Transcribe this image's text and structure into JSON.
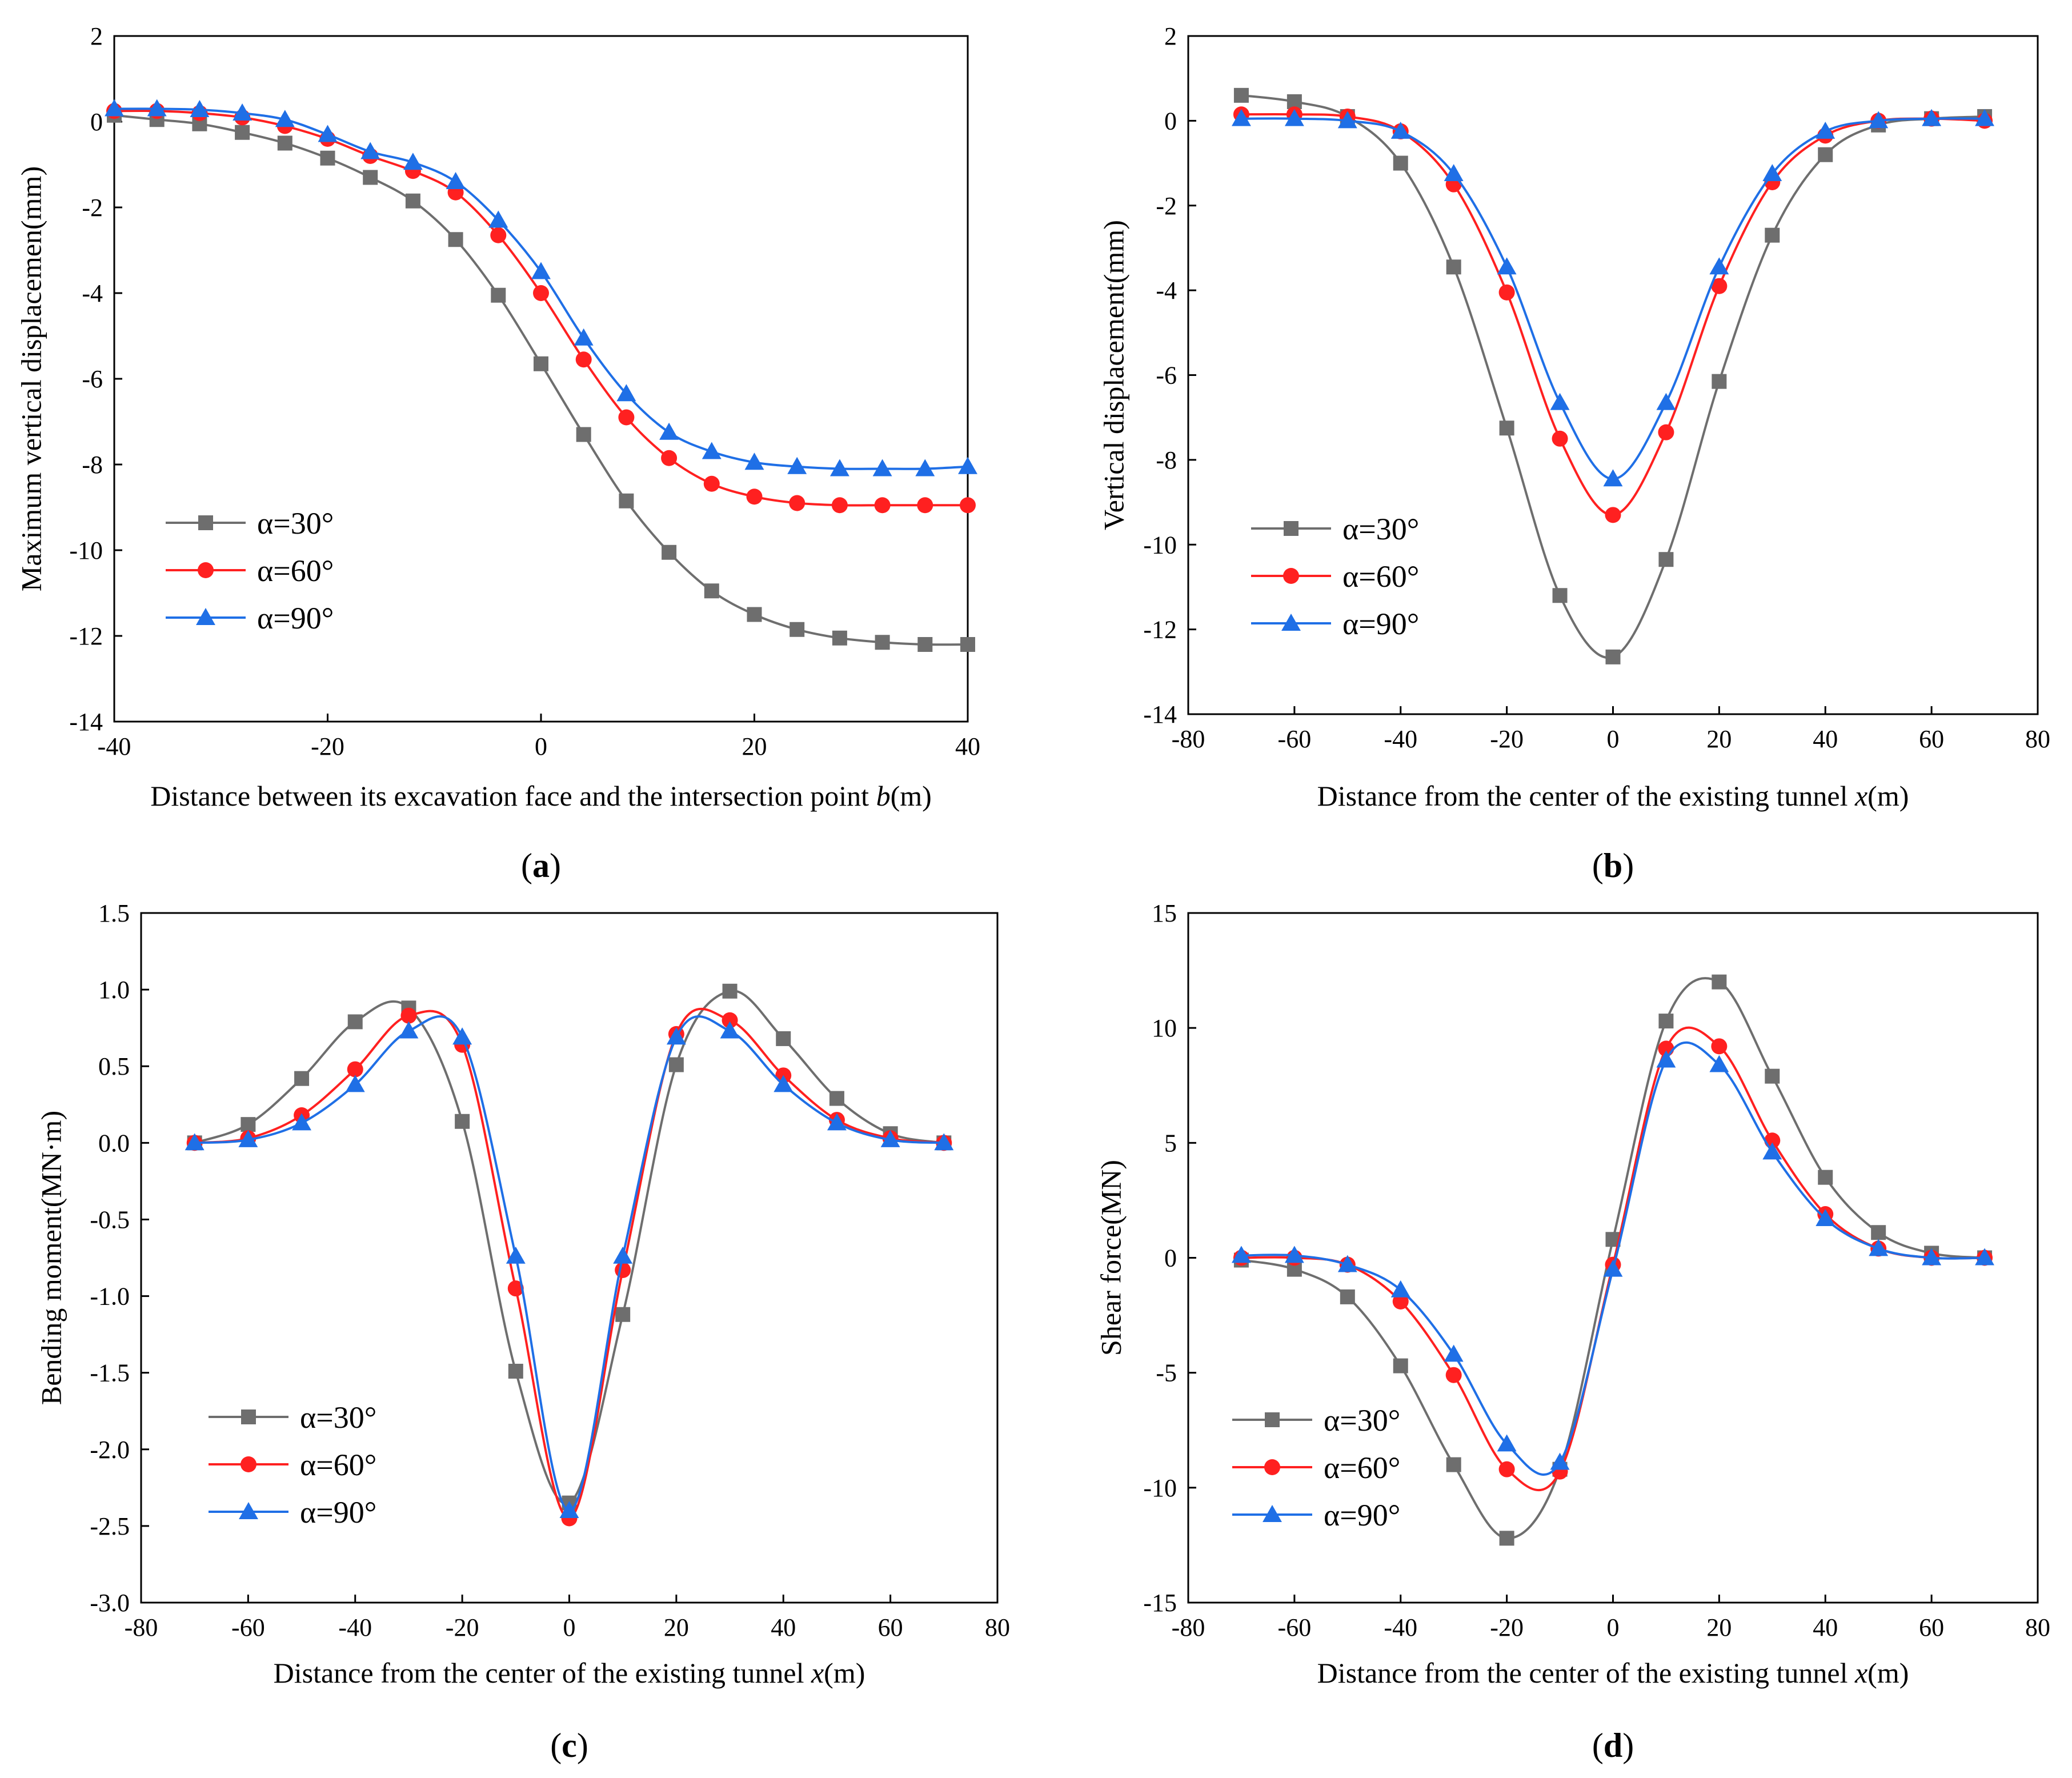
{
  "colors": {
    "s30": "#6e6e6e",
    "s60": "#ff2020",
    "s90": "#1f6fe6"
  },
  "chart_data": [
    {
      "id": "a",
      "type": "line",
      "panel_label": "(a)",
      "xlabel": "Distance between its excavation face and the intersection point b(m)",
      "xlabel_parts": {
        "pre": "Distance between its excavation face and the intersection point ",
        "var": "b",
        "post": "(m)"
      },
      "ylabel": "Maximum vertical displacemen(mm)",
      "xlim": [
        -40,
        40
      ],
      "ylim": [
        -14,
        2
      ],
      "xticks": [
        -40,
        -20,
        0,
        20,
        40
      ],
      "yticks": [
        -14,
        -12,
        -10,
        -8,
        -6,
        -4,
        -2,
        0,
        2
      ],
      "x": [
        -40,
        -36,
        -32,
        -28,
        -24,
        -20,
        -16,
        -12,
        -8,
        -4,
        0,
        4,
        8,
        12,
        16,
        20,
        24,
        28,
        32,
        36,
        40
      ],
      "series": [
        {
          "name": "α=30°",
          "marker": "square",
          "values": [
            0.15,
            0.05,
            -0.05,
            -0.25,
            -0.5,
            -0.85,
            -1.3,
            -1.85,
            -2.75,
            -4.05,
            -5.65,
            -7.3,
            -8.85,
            -10.05,
            -10.95,
            -11.5,
            -11.85,
            -12.05,
            -12.15,
            -12.2,
            -12.2
          ]
        },
        {
          "name": "α=60°",
          "marker": "circle",
          "values": [
            0.25,
            0.25,
            0.2,
            0.1,
            -0.1,
            -0.4,
            -0.8,
            -1.15,
            -1.65,
            -2.65,
            -4.0,
            -5.55,
            -6.9,
            -7.85,
            -8.45,
            -8.75,
            -8.9,
            -8.95,
            -8.95,
            -8.95,
            -8.95
          ]
        },
        {
          "name": "α=90°",
          "marker": "triangle",
          "values": [
            0.3,
            0.3,
            0.28,
            0.2,
            0.05,
            -0.3,
            -0.7,
            -0.95,
            -1.4,
            -2.3,
            -3.5,
            -5.05,
            -6.35,
            -7.25,
            -7.7,
            -7.95,
            -8.05,
            -8.1,
            -8.1,
            -8.1,
            -8.05
          ]
        }
      ]
    },
    {
      "id": "b",
      "type": "line",
      "panel_label": "(b)",
      "xlabel": "Distance from the center of the existing tunnel x(m)",
      "xlabel_parts": {
        "pre": "Distance from the center of the existing tunnel ",
        "var": "x",
        "post": "(m)"
      },
      "ylabel": "Vertical displacement(mm)",
      "xlim": [
        -80,
        80
      ],
      "ylim": [
        -14,
        2
      ],
      "xticks": [
        -80,
        -60,
        -40,
        -20,
        0,
        20,
        40,
        60,
        80
      ],
      "yticks": [
        -14,
        -12,
        -10,
        -8,
        -6,
        -4,
        -2,
        0,
        2
      ],
      "x": [
        -70,
        -60,
        -50,
        -40,
        -30,
        -20,
        -10,
        0,
        10,
        20,
        30,
        40,
        50,
        60,
        70
      ],
      "series": [
        {
          "name": "α=30°",
          "marker": "square",
          "values": [
            0.6,
            0.45,
            0.1,
            -1.0,
            -3.45,
            -7.25,
            -11.2,
            -12.65,
            -10.35,
            -6.15,
            -2.7,
            -0.8,
            -0.1,
            0.05,
            0.1
          ]
        },
        {
          "name": "α=60°",
          "marker": "circle",
          "values": [
            0.15,
            0.15,
            0.1,
            -0.25,
            -1.5,
            -4.05,
            -7.5,
            -9.3,
            -7.35,
            -3.9,
            -1.45,
            -0.35,
            0.0,
            0.05,
            0.0
          ]
        },
        {
          "name": "α=90°",
          "marker": "triangle",
          "values": [
            0.05,
            0.05,
            0.0,
            -0.25,
            -1.25,
            -3.45,
            -6.65,
            -8.45,
            -6.65,
            -3.45,
            -1.25,
            -0.25,
            0.0,
            0.05,
            0.05
          ]
        }
      ]
    },
    {
      "id": "c",
      "type": "line",
      "panel_label": "(c)",
      "xlabel": "Distance from the center of the existing tunnel x(m)",
      "xlabel_parts": {
        "pre": "Distance from the center of the existing tunnel  ",
        "var": "x",
        "post": "(m)"
      },
      "ylabel": "Bending moment(MN·m)",
      "xlim": [
        -80,
        80
      ],
      "ylim": [
        -3.0,
        1.5
      ],
      "xticks": [
        -80,
        -60,
        -40,
        -20,
        0,
        20,
        40,
        60,
        80
      ],
      "yticks": [
        -3.0,
        -2.5,
        -2.0,
        -1.5,
        -1.0,
        -0.5,
        0.0,
        0.5,
        1.0,
        1.5
      ],
      "x": [
        -70,
        -60,
        -50,
        -40,
        -30,
        -20,
        -10,
        0,
        10,
        20,
        30,
        40,
        50,
        60,
        70
      ],
      "series": [
        {
          "name": "α=30°",
          "marker": "square",
          "values": [
            0.0,
            0.12,
            0.42,
            0.79,
            0.88,
            0.14,
            -1.49,
            -2.35,
            -1.12,
            0.51,
            0.99,
            0.68,
            0.29,
            0.06,
            0.0
          ]
        },
        {
          "name": "α=60°",
          "marker": "circle",
          "values": [
            0.0,
            0.03,
            0.18,
            0.48,
            0.83,
            0.64,
            -0.95,
            -2.45,
            -0.83,
            0.71,
            0.8,
            0.44,
            0.15,
            0.03,
            0.0
          ]
        },
        {
          "name": "α=90°",
          "marker": "triangle",
          "values": [
            0.0,
            0.02,
            0.13,
            0.38,
            0.73,
            0.69,
            -0.74,
            -2.4,
            -0.74,
            0.69,
            0.73,
            0.38,
            0.13,
            0.02,
            0.0
          ]
        }
      ]
    },
    {
      "id": "d",
      "type": "line",
      "panel_label": "(d)",
      "xlabel": "Distance from the center of the existing tunnel x(m)",
      "xlabel_parts": {
        "pre": "Distance from the center of the existing tunnel ",
        "var": "x",
        "post": "(m)"
      },
      "ylabel": "Shear force(MN)",
      "xlim": [
        -80,
        80
      ],
      "ylim": [
        -15,
        15
      ],
      "xticks": [
        -80,
        -60,
        -40,
        -20,
        0,
        20,
        40,
        60,
        80
      ],
      "yticks": [
        -15,
        -10,
        -5,
        0,
        5,
        10,
        15
      ],
      "x": [
        -70,
        -60,
        -50,
        -40,
        -30,
        -20,
        -10,
        0,
        10,
        20,
        30,
        40,
        50,
        60,
        70
      ],
      "series": [
        {
          "name": "α=30°",
          "marker": "square",
          "values": [
            -0.1,
            -0.5,
            -1.7,
            -4.7,
            -9.0,
            -12.2,
            -9.2,
            0.8,
            10.3,
            12.0,
            7.9,
            3.5,
            1.1,
            0.2,
            0.0
          ]
        },
        {
          "name": "α=60°",
          "marker": "circle",
          "values": [
            0.0,
            0.0,
            -0.3,
            -1.9,
            -5.1,
            -9.2,
            -9.3,
            -0.3,
            9.1,
            9.2,
            5.1,
            1.9,
            0.4,
            0.0,
            0.0
          ]
        },
        {
          "name": "α=90°",
          "marker": "triangle",
          "values": [
            0.1,
            0.1,
            -0.3,
            -1.4,
            -4.2,
            -8.1,
            -8.9,
            -0.5,
            8.6,
            8.4,
            4.6,
            1.7,
            0.4,
            0.0,
            0.0
          ]
        }
      ]
    }
  ]
}
